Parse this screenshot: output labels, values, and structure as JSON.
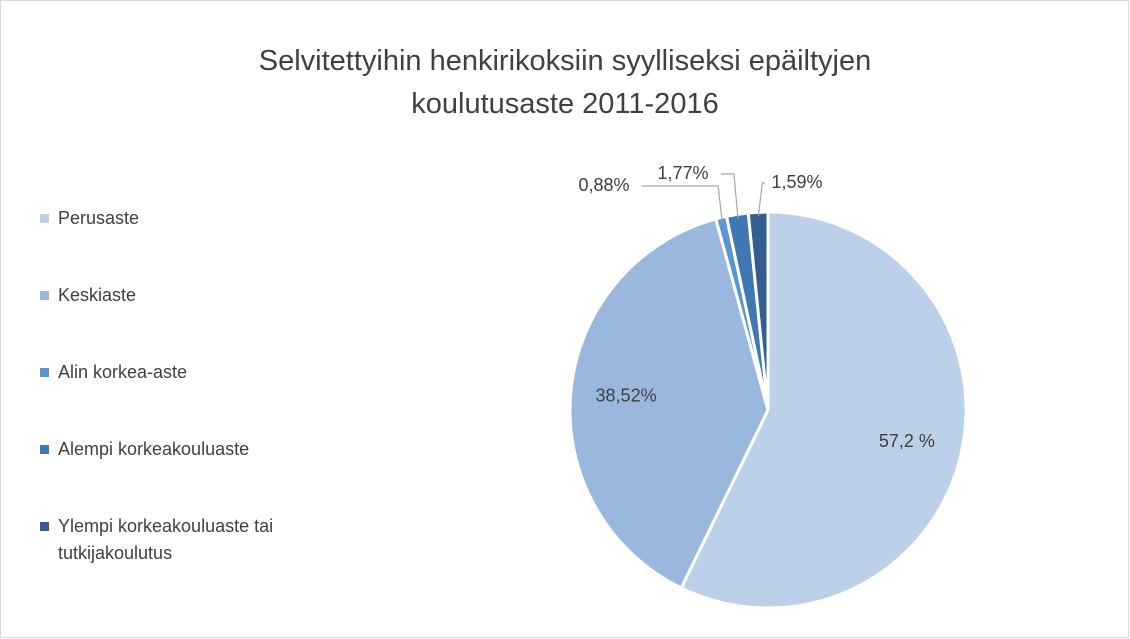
{
  "chart_data": {
    "type": "pie",
    "title": "Selvitettyihin henkirikoksiin syylliseksi epäiltyjen koulutusaste 2011-2016",
    "categories": [
      "Perusaste",
      "Keskiaste",
      "Alin korkea-aste",
      "Alempi korkeakouluaste",
      "Ylempi korkeakouluaste tai tutkijakoulutus"
    ],
    "values": [
      57.2,
      38.52,
      0.88,
      1.77,
      1.59
    ],
    "value_labels": [
      "57,2 %",
      "38,52%",
      "0,88%",
      "1,77%",
      "1,59%"
    ],
    "colors": [
      "#bdd0ea",
      "#9ab8de",
      "#5b95cf",
      "#3f78b5",
      "#335e8e"
    ],
    "legend": "left"
  }
}
